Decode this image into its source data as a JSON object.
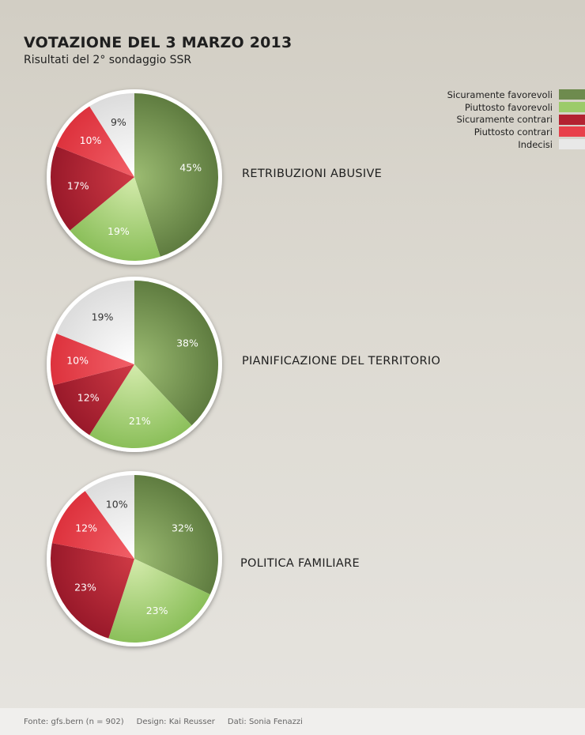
{
  "header": {
    "title": "VOTAZIONE DEL 3 MARZO 2013",
    "subtitle": "Risultati del 2° sondaggio SSR"
  },
  "legend": [
    {
      "label": "Sicuramente favorevoli",
      "color": "#6e8b4e"
    },
    {
      "label": "Piuttosto favorevoli",
      "color": "#9ccb6a"
    },
    {
      "label": "Sicuramente contrari",
      "color": "#b32231"
    },
    {
      "label": "Piuttosto contrari",
      "color": "#e8404a"
    },
    {
      "label": "Indecisi",
      "color": "#e8e8e8"
    }
  ],
  "chart_data": [
    {
      "type": "pie",
      "title": "RETRIBUZIONI ABUSIVE",
      "categories": [
        "Sicuramente favorevoli",
        "Piuttosto favorevoli",
        "Sicuramente contrari",
        "Piuttosto contrari",
        "Indecisi"
      ],
      "values": [
        45,
        19,
        17,
        10,
        9
      ],
      "labels": [
        "45%",
        "19%",
        "17%",
        "10%",
        "9%"
      ]
    },
    {
      "type": "pie",
      "title": "PIANIFICAZIONE DEL TERRITORIO",
      "categories": [
        "Sicuramente favorevoli",
        "Piuttosto favorevoli",
        "Sicuramente contrari",
        "Piuttosto contrari",
        "Indecisi"
      ],
      "values": [
        38,
        21,
        12,
        10,
        19
      ],
      "labels": [
        "38%",
        "21%",
        "12%",
        "10%",
        "19%"
      ]
    },
    {
      "type": "pie",
      "title": "POLITICA FAMILIARE",
      "categories": [
        "Sicuramente favorevoli",
        "Piuttosto favorevoli",
        "Sicuramente contrari",
        "Piuttosto contrari",
        "Indecisi"
      ],
      "values": [
        32,
        23,
        23,
        12,
        10
      ],
      "labels": [
        "32%",
        "23%",
        "23%",
        "12%",
        "10%"
      ]
    }
  ],
  "footer": {
    "source": "Fonte: gfs.bern (n = 902)",
    "design": "Design: Kai Reusser",
    "data": "Dati: Sonia Fenazzi"
  }
}
